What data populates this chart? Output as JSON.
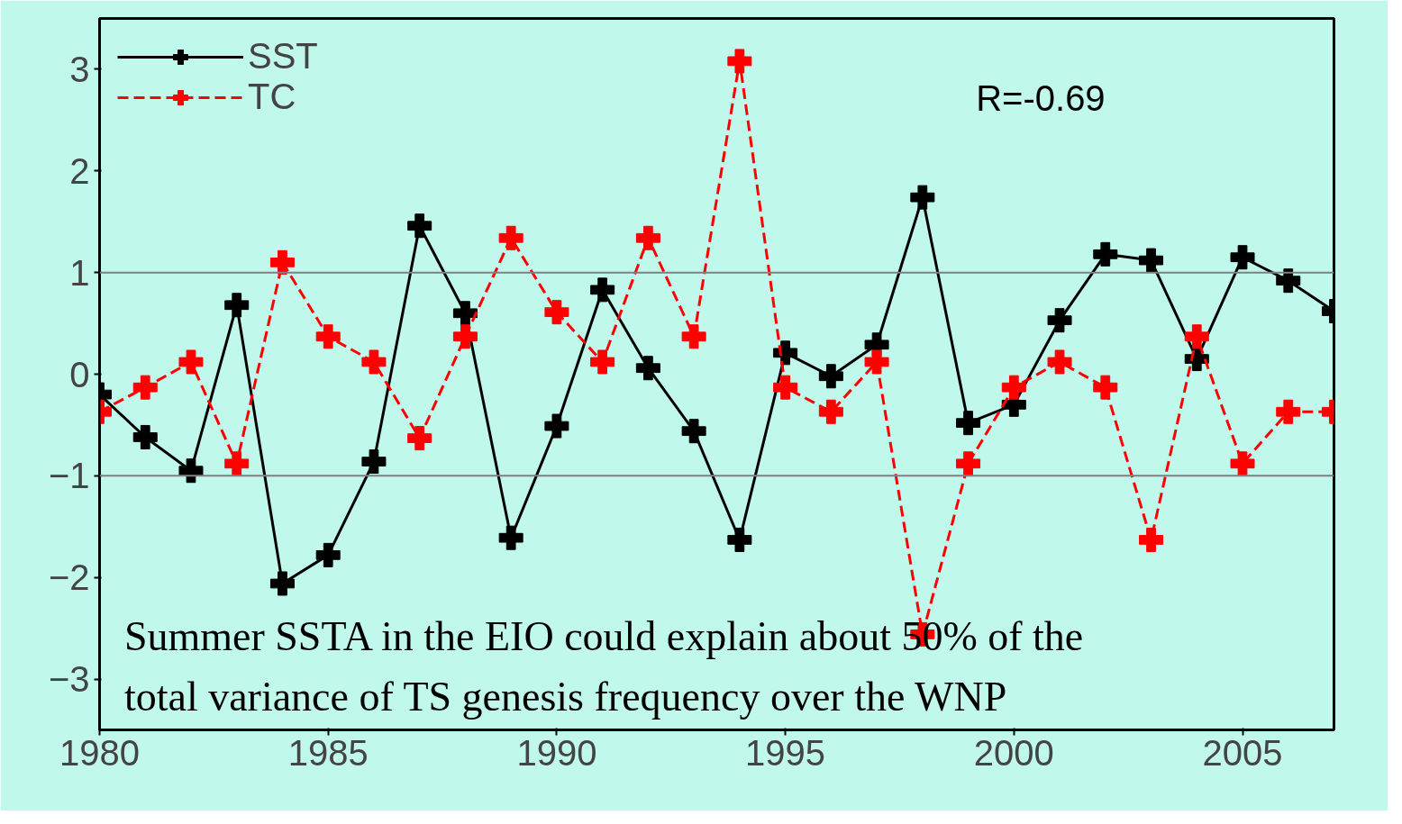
{
  "chart_data": {
    "type": "line",
    "x": [
      1980,
      1981,
      1982,
      1983,
      1984,
      1985,
      1986,
      1987,
      1988,
      1989,
      1990,
      1991,
      1992,
      1993,
      1994,
      1995,
      1996,
      1997,
      1998,
      1999,
      2000,
      2001,
      2002,
      2003,
      2004,
      2005,
      2006,
      2007
    ],
    "series": [
      {
        "name": "SST",
        "color": "#000000",
        "line_style": "solid",
        "values": [
          -0.2,
          -0.62,
          -0.95,
          0.68,
          -2.06,
          -1.78,
          -0.86,
          1.46,
          0.6,
          -1.61,
          -0.51,
          0.83,
          0.06,
          -0.56,
          -1.63,
          0.21,
          -0.02,
          0.29,
          1.74,
          -0.48,
          -0.3,
          0.53,
          1.18,
          1.12,
          0.15,
          1.15,
          0.92,
          0.62
        ]
      },
      {
        "name": "TC",
        "color": "#ff0000",
        "line_style": "dashed",
        "values": [
          -0.37,
          -0.13,
          0.12,
          -0.88,
          1.1,
          0.37,
          0.12,
          -0.63,
          0.37,
          1.34,
          0.61,
          0.12,
          1.34,
          0.37,
          3.08,
          -0.13,
          -0.37,
          0.12,
          -2.56,
          -0.88,
          -0.13,
          0.12,
          -0.13,
          -1.63,
          0.37,
          -0.88,
          -0.37,
          -0.37
        ]
      }
    ],
    "marker": "cross",
    "xlim": [
      1980,
      2007
    ],
    "xticks": [
      1980,
      1985,
      1990,
      1995,
      2000,
      2005
    ],
    "ylim": [
      -3.5,
      3.5
    ],
    "yticks": [
      -3,
      -2,
      -1,
      0,
      1,
      2,
      3
    ],
    "grid": false,
    "legend": "top left",
    "ref_lines": [
      {
        "axis": "y",
        "value": 1,
        "color": "#808080"
      },
      {
        "axis": "y",
        "value": -1,
        "color": "#808080"
      }
    ],
    "annotations": [
      "R=-0.69",
      "Summer SSTA in the EIO could explain about 50% of the total variance  of TS genesis frequency over the WNP"
    ]
  }
}
